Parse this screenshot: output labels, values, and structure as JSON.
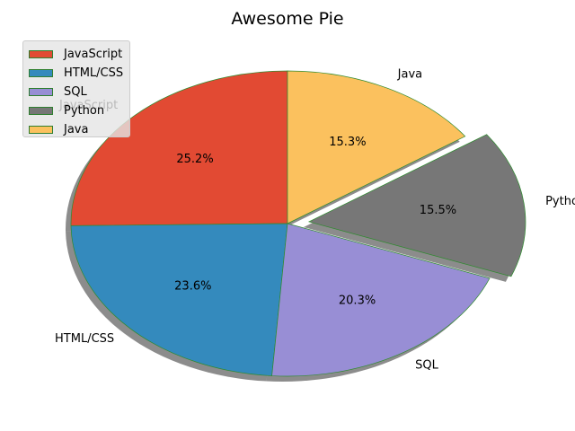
{
  "chart_data": {
    "type": "pie",
    "title": "Awesome Pie",
    "slices": [
      {
        "label": "JavaScript",
        "value": 25.2,
        "pct_label": "25.2%",
        "color": "#E24A33",
        "explode": 0
      },
      {
        "label": "HTML/CSS",
        "value": 23.6,
        "pct_label": "23.6%",
        "color": "#348ABD",
        "explode": 0
      },
      {
        "label": "SQL",
        "value": 20.3,
        "pct_label": "20.3%",
        "color": "#988ED5",
        "explode": 0
      },
      {
        "label": "Python",
        "value": 15.5,
        "pct_label": "15.5%",
        "color": "#777777",
        "explode": 0.1
      },
      {
        "label": "Java",
        "value": 15.3,
        "pct_label": "15.3%",
        "color": "#FBC15E",
        "explode": 0
      }
    ],
    "start_angle_deg": 90,
    "direction": "counterclockwise",
    "shadow": true,
    "edge_color": "#2E8B2E",
    "legend": {
      "placement": "upper-left",
      "entries": [
        "JavaScript",
        "HTML/CSS",
        "SQL",
        "Python",
        "Java"
      ]
    }
  }
}
